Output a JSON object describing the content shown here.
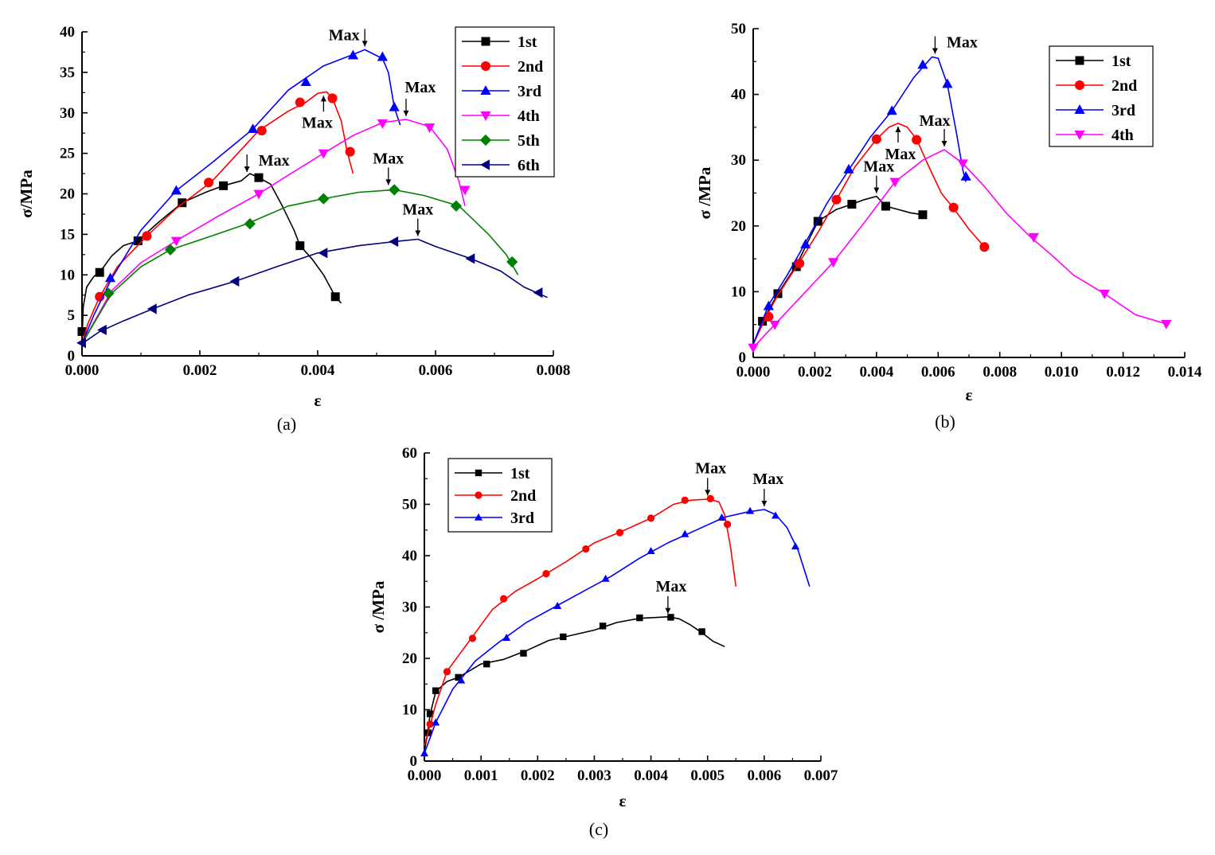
{
  "chart_data": [
    {
      "type": "line",
      "caption": "(a)",
      "xlabel": "ε",
      "ylabel": "σ/MPa",
      "xlim": [
        0,
        0.008
      ],
      "ylim": [
        0,
        40
      ],
      "xticks": [
        0,
        0.002,
        0.004,
        0.006,
        0.008
      ],
      "xtick_labels": [
        "0.000",
        "0.002",
        "0.004",
        "0.006",
        "0.008"
      ],
      "yticks": [
        0,
        5,
        10,
        15,
        20,
        25,
        30,
        35,
        40
      ],
      "ytick_labels": [
        "0",
        "5",
        "10",
        "15",
        "20",
        "25",
        "30",
        "35",
        "40"
      ],
      "legend_position": "top-right",
      "series": [
        {
          "name": "1st",
          "color": "#000000",
          "marker": "square",
          "x": [
            0,
            2e-05,
            8e-05,
            0.0002,
            0.0003,
            0.0005,
            0.0007,
            0.00095,
            0.0013,
            0.0017,
            0.0021,
            0.0024,
            0.0027,
            0.00285,
            0.003,
            0.0032,
            0.0034,
            0.0036,
            0.0037,
            0.0039,
            0.0041,
            0.0043,
            0.0044
          ],
          "y": [
            1.5,
            6,
            8.5,
            9.8,
            10.3,
            12.3,
            13.6,
            14.2,
            16.5,
            18.9,
            20.2,
            21.0,
            21.6,
            22.5,
            22.0,
            21.2,
            18.5,
            15.5,
            13.6,
            12,
            10,
            7.3,
            6.5
          ],
          "markers_x": [
            0,
            0.0003,
            0.00095,
            0.0017,
            0.0024,
            0.003,
            0.0037,
            0.0043
          ],
          "markers_y": [
            3,
            10.3,
            14.2,
            18.9,
            21.0,
            22.0,
            13.6,
            7.3
          ]
        },
        {
          "name": "2nd",
          "color": "#ff0000",
          "marker": "circle",
          "x": [
            0,
            0.0001,
            0.0003,
            0.0006,
            0.0011,
            0.0016,
            0.0022,
            0.003,
            0.0035,
            0.0038,
            0.004,
            0.00415,
            0.00425,
            0.0044,
            0.0045,
            0.0046
          ],
          "y": [
            1.5,
            4,
            7.3,
            11,
            14.8,
            18.2,
            21.5,
            27.8,
            30.2,
            31.3,
            32.4,
            32.6,
            31.8,
            29,
            25.2,
            22.5
          ],
          "markers_x": [
            0.0003,
            0.0011,
            0.00215,
            0.00305,
            0.0037,
            0.00425,
            0.00455
          ],
          "markers_y": [
            7.3,
            14.8,
            21.4,
            27.8,
            31.3,
            31.8,
            25.2
          ]
        },
        {
          "name": "3rd",
          "color": "#0000ff",
          "marker": "triangle-up",
          "x": [
            0,
            0.0002,
            0.0005,
            0.001,
            0.0016,
            0.0022,
            0.0029,
            0.0035,
            0.0041,
            0.0046,
            0.0048,
            0.0051,
            0.0052,
            0.0053,
            0.0054
          ],
          "y": [
            1.5,
            5,
            9.5,
            15.5,
            20.4,
            23.8,
            28,
            32.8,
            35.8,
            37.2,
            37.8,
            36.7,
            35,
            30.7,
            28.5
          ],
          "markers_x": [
            0.00048,
            0.0016,
            0.0029,
            0.0038,
            0.0046,
            0.0051,
            0.0053
          ],
          "markers_y": [
            9.6,
            20.4,
            28,
            33.8,
            37.1,
            36.9,
            30.7
          ]
        },
        {
          "name": "4th",
          "color": "#ff00ff",
          "marker": "triangle-down",
          "x": [
            0,
            0.0005,
            0.001,
            0.0016,
            0.0023,
            0.003,
            0.0035,
            0.0041,
            0.0046,
            0.0051,
            0.0055,
            0.0059,
            0.0062,
            0.0064,
            0.0065
          ],
          "y": [
            1.5,
            8,
            11.5,
            14.2,
            17.2,
            20,
            22.3,
            25,
            27.2,
            28.8,
            29.2,
            28.3,
            25.5,
            21.5,
            18.5
          ],
          "markers_x": [
            0.00045,
            0.0016,
            0.003,
            0.0041,
            0.0051,
            0.0059,
            0.0065
          ],
          "markers_y": [
            7.5,
            14.2,
            20,
            25,
            28.7,
            28.2,
            20.5
          ]
        },
        {
          "name": "5th",
          "color": "#008000",
          "marker": "diamond",
          "x": [
            0,
            0.0005,
            0.001,
            0.0015,
            0.0022,
            0.0028,
            0.0035,
            0.0041,
            0.0047,
            0.0053,
            0.0058,
            0.0064,
            0.0069,
            0.0072,
            0.0074
          ],
          "y": [
            1.5,
            7.7,
            11,
            13.1,
            14.8,
            16.3,
            18.5,
            19.4,
            20.2,
            20.5,
            19.8,
            18.5,
            15,
            12.5,
            10
          ],
          "markers_x": [
            0.00045,
            0.0015,
            0.00285,
            0.0041,
            0.0053,
            0.00635,
            0.0073
          ],
          "markers_y": [
            7.7,
            13.1,
            16.3,
            19.4,
            20.5,
            18.5,
            11.6
          ]
        },
        {
          "name": "6th",
          "color": "#000080",
          "marker": "triangle-left",
          "x": [
            0,
            0.0003,
            0.0007,
            0.0012,
            0.0018,
            0.0026,
            0.0033,
            0.004,
            0.0047,
            0.0053,
            0.0057,
            0.006,
            0.0066,
            0.0071,
            0.0075,
            0.0079
          ],
          "y": [
            1.5,
            3,
            4.3,
            5.8,
            7.5,
            9.2,
            11,
            12.7,
            13.6,
            14.1,
            14.4,
            13.5,
            12,
            10.5,
            8.5,
            7.2
          ],
          "markers_x": [
            0,
            0.00035,
            0.0012,
            0.0026,
            0.0041,
            0.0053,
            0.0066,
            0.00775
          ],
          "markers_y": [
            1.6,
            3.2,
            5.8,
            9.2,
            12.7,
            14.1,
            12,
            7.8
          ]
        }
      ],
      "annotations": [
        {
          "text": "Max",
          "x": 0.0048,
          "y": 37.8,
          "side": "above"
        },
        {
          "text": "Max",
          "x": 0.0041,
          "y": 32.5,
          "side": "below"
        },
        {
          "text": "Max",
          "x": 0.0055,
          "y": 29.2,
          "side": "above"
        },
        {
          "text": "Max",
          "x": 0.0028,
          "y": 22.3,
          "side": "above"
        },
        {
          "text": "Max",
          "x": 0.0052,
          "y": 20.7,
          "side": "above"
        },
        {
          "text": "Max",
          "x": 0.0057,
          "y": 14.4,
          "side": "above"
        }
      ]
    },
    {
      "type": "line",
      "caption": "(b)",
      "xlabel": "ε",
      "ylabel": "σ /MPa",
      "xlim": [
        0,
        0.014
      ],
      "ylim": [
        0,
        50
      ],
      "xticks": [
        0,
        0.002,
        0.004,
        0.006,
        0.008,
        0.01,
        0.012,
        0.014
      ],
      "xtick_labels": [
        "0.000",
        "0.002",
        "0.004",
        "0.006",
        "0.008",
        "0.010",
        "0.012",
        "0.014"
      ],
      "yticks": [
        0,
        10,
        20,
        30,
        40,
        50
      ],
      "ytick_labels": [
        "0",
        "10",
        "20",
        "30",
        "40",
        "50"
      ],
      "legend_position": "top-right",
      "series": [
        {
          "name": "1st",
          "color": "#000000",
          "marker": "square",
          "x": [
            0,
            0.0003,
            0.0008,
            0.0014,
            0.0021,
            0.0027,
            0.0032,
            0.0036,
            0.004,
            0.0043,
            0.0047,
            0.0051,
            0.0055
          ],
          "y": [
            2,
            5.5,
            9.7,
            14,
            20.7,
            22.5,
            23.3,
            24,
            24.5,
            23,
            22.5,
            22,
            21.7
          ],
          "markers_x": [
            0.0003,
            0.0008,
            0.0014,
            0.0021,
            0.0032,
            0.0043,
            0.0055
          ],
          "markers_y": [
            5.5,
            9.7,
            13.8,
            20.7,
            23.3,
            23,
            21.7
          ]
        },
        {
          "name": "2nd",
          "color": "#ff0000",
          "marker": "circle",
          "x": [
            0,
            0.0004,
            0.0008,
            0.0015,
            0.0021,
            0.0027,
            0.0033,
            0.004,
            0.0044,
            0.0047,
            0.005,
            0.0053,
            0.0057,
            0.0061,
            0.0065,
            0.007,
            0.0075
          ],
          "y": [
            2,
            6,
            9.5,
            14.5,
            19,
            24,
            29,
            33.2,
            35,
            35.6,
            35,
            33.2,
            29,
            25,
            22.7,
            19.5,
            16.8
          ],
          "markers_x": [
            0.0005,
            0.0015,
            0.0027,
            0.004,
            0.0053,
            0.0065,
            0.0075
          ],
          "markers_y": [
            6.2,
            14.3,
            24,
            33.2,
            33.1,
            22.8,
            16.8
          ]
        },
        {
          "name": "3rd",
          "color": "#0000ff",
          "marker": "triangle-up",
          "x": [
            0,
            0.0005,
            0.0011,
            0.0017,
            0.0024,
            0.0031,
            0.0038,
            0.0045,
            0.0052,
            0.0058,
            0.006,
            0.0063,
            0.0066,
            0.0068,
            0.0069
          ],
          "y": [
            2,
            8,
            12.5,
            17.5,
            23.5,
            28.5,
            33.5,
            37.5,
            42.5,
            45.7,
            45.5,
            41.5,
            34,
            28.5,
            26.7
          ],
          "markers_x": [
            0.0005,
            0.0017,
            0.0031,
            0.0045,
            0.0055,
            0.0063,
            0.0069
          ],
          "markers_y": [
            7.8,
            17.2,
            28.6,
            37.5,
            44.5,
            41.6,
            27.5
          ]
        },
        {
          "name": "4th",
          "color": "#ff00ff",
          "marker": "triangle-down",
          "x": [
            0,
            0.0007,
            0.0015,
            0.0026,
            0.0036,
            0.0046,
            0.0055,
            0.0062,
            0.0068,
            0.0075,
            0.0082,
            0.009,
            0.0097,
            0.0104,
            0.0114,
            0.0124,
            0.0134
          ],
          "y": [
            1.5,
            5,
            9,
            14.5,
            20.5,
            26.7,
            30,
            31.6,
            29.5,
            26,
            22,
            18.3,
            15.5,
            12.5,
            9.7,
            6.5,
            5.1
          ],
          "markers_x": [
            0,
            0.0007,
            0.0026,
            0.0046,
            0.0068,
            0.0091,
            0.0114,
            0.0134
          ],
          "markers_y": [
            1.5,
            5,
            14.5,
            26.7,
            29.5,
            18.3,
            9.7,
            5.1
          ]
        }
      ],
      "annotations": [
        {
          "text": "Max",
          "x": 0.0059,
          "y": 45.7,
          "side": "above"
        },
        {
          "text": "Max",
          "x": 0.0062,
          "y": 31.6,
          "side": "above"
        },
        {
          "text": "Max",
          "x": 0.0047,
          "y": 35.6,
          "side": "below"
        },
        {
          "text": "Max",
          "x": 0.004,
          "y": 24.5,
          "side": "above"
        }
      ]
    },
    {
      "type": "line",
      "caption": "(c)",
      "xlabel": "ε",
      "ylabel": "σ /MPa",
      "xlim": [
        0,
        0.007
      ],
      "ylim": [
        0,
        60
      ],
      "xticks": [
        0,
        0.001,
        0.002,
        0.003,
        0.004,
        0.005,
        0.006,
        0.007
      ],
      "xtick_labels": [
        "0.000",
        "0.001",
        "0.002",
        "0.003",
        "0.004",
        "0.005",
        "0.006",
        "0.007"
      ],
      "yticks": [
        0,
        10,
        20,
        30,
        40,
        50,
        60
      ],
      "ytick_labels": [
        "0",
        "10",
        "20",
        "30",
        "40",
        "50",
        "60"
      ],
      "legend_position": "top-left",
      "series": [
        {
          "name": "1st",
          "color": "#000000",
          "marker": "square",
          "x": [
            0,
            5e-05,
            0.0001,
            0.0002,
            0.0004,
            0.0006,
            0.001,
            0.0014,
            0.0018,
            0.0022,
            0.0026,
            0.003,
            0.0034,
            0.0038,
            0.0043,
            0.0045,
            0.0047,
            0.0049,
            0.0051,
            0.0053
          ],
          "y": [
            2,
            5,
            9,
            13.5,
            15.5,
            16.3,
            18.9,
            19.8,
            21.5,
            23.5,
            24.5,
            25.5,
            27,
            27.8,
            28.1,
            27.7,
            26.5,
            25,
            23.3,
            22.3
          ],
          "markers_x": [
            7e-05,
            0.0001,
            0.0002,
            0.0006,
            0.0011,
            0.00175,
            0.00245,
            0.00315,
            0.0038,
            0.00435,
            0.0049
          ],
          "markers_y": [
            5.5,
            9.2,
            13.7,
            16.3,
            18.9,
            21,
            24.2,
            26.3,
            27.9,
            28,
            25.2
          ]
        },
        {
          "name": "2nd",
          "color": "#ff0000",
          "marker": "circle",
          "x": [
            0,
            0.0001,
            0.0002,
            0.0004,
            0.0006,
            0.0009,
            0.0012,
            0.0016,
            0.002,
            0.0025,
            0.003,
            0.0035,
            0.004,
            0.0044,
            0.0047,
            0.005,
            0.0052,
            0.0053,
            0.0054,
            0.0055
          ],
          "y": [
            3,
            7,
            11,
            17.5,
            20.5,
            25,
            29.5,
            33,
            35.5,
            38.8,
            42.5,
            44.8,
            47.3,
            50,
            50.8,
            51,
            50.5,
            48,
            42,
            34
          ],
          "markers_x": [
            0.0001,
            0.0004,
            0.00085,
            0.0014,
            0.00215,
            0.00285,
            0.00345,
            0.004,
            0.0046,
            0.00505,
            0.00535
          ],
          "markers_y": [
            7.2,
            17.4,
            23.9,
            31.6,
            36.5,
            41.3,
            44.5,
            47.3,
            50.8,
            51.1,
            46.1
          ]
        },
        {
          "name": "3rd",
          "color": "#0000ff",
          "marker": "triangle-up",
          "x": [
            0,
            0.0002,
            0.0005,
            0.0009,
            0.0013,
            0.0018,
            0.0023,
            0.0028,
            0.0033,
            0.0038,
            0.0043,
            0.0048,
            0.0053,
            0.0057,
            0.006,
            0.0062,
            0.0064,
            0.0066,
            0.0068
          ],
          "y": [
            1.5,
            7.5,
            14,
            19.5,
            23,
            27,
            30,
            33,
            36,
            39.5,
            42.5,
            45,
            47.5,
            48.5,
            49,
            48,
            45.5,
            41,
            34
          ],
          "markers_x": [
            0,
            0.0002,
            0.00065,
            0.00145,
            0.00235,
            0.0032,
            0.004,
            0.0046,
            0.00525,
            0.00575,
            0.0062,
            0.00655
          ],
          "markers_y": [
            1.5,
            7.5,
            15.7,
            24,
            30.2,
            35.5,
            40.9,
            44.2,
            47.4,
            48.7,
            47.8,
            41.8
          ]
        }
      ],
      "annotations": [
        {
          "text": "Max",
          "x": 0.005,
          "y": 51.1,
          "side": "above"
        },
        {
          "text": "Max",
          "x": 0.006,
          "y": 49,
          "side": "above"
        },
        {
          "text": "Max",
          "x": 0.0043,
          "y": 28.1,
          "side": "above"
        }
      ]
    }
  ]
}
